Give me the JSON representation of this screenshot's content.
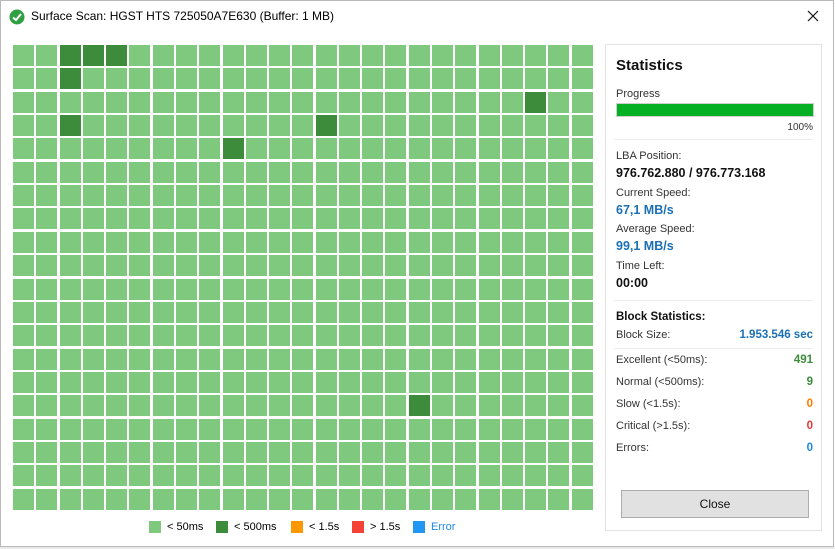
{
  "window": {
    "title": "Surface Scan: HGST HTS 725050A7E630 (Buffer: 1 MB)"
  },
  "grid": {
    "cols": 25,
    "rows": 20,
    "normal_color": "#7fc97f",
    "slow_color": "#3c8c3c",
    "slow_blocks": [
      [
        2,
        0
      ],
      [
        3,
        0
      ],
      [
        4,
        0
      ],
      [
        2,
        1
      ],
      [
        22,
        2
      ],
      [
        2,
        3
      ],
      [
        13,
        3
      ],
      [
        9,
        4
      ],
      [
        17,
        15
      ]
    ]
  },
  "legend": [
    {
      "label": "< 50ms",
      "color": "#7fc97f",
      "icon": "square-icon"
    },
    {
      "label": "< 500ms",
      "color": "#3c8c3c",
      "icon": "square-icon"
    },
    {
      "label": "< 1.5s",
      "color": "#ff9800",
      "icon": "square-icon"
    },
    {
      "label": "> 1.5s",
      "color": "#f44336",
      "icon": "square-icon"
    },
    {
      "label": "Error",
      "color": "#2196f3",
      "icon": "square-icon"
    }
  ],
  "stats": {
    "title": "Statistics",
    "progress_label": "Progress",
    "progress_value": 1.0,
    "progress_text": "100%",
    "lba_label": "LBA Position:",
    "lba_value": "976.762.880 / 976.773.168",
    "current_speed_label": "Current Speed:",
    "current_speed_value": "67,1 MB/s",
    "average_speed_label": "Average Speed:",
    "average_speed_value": "99,1 MB/s",
    "time_left_label": "Time Left:",
    "time_left_value": "00:00"
  },
  "block_stats": {
    "title": "Block Statistics:",
    "block_size_label": "Block Size:",
    "block_size_value": "1.953.546 sec",
    "rows": [
      {
        "label": "Excellent (<50ms):",
        "value": "491",
        "color": "#3c8c3c"
      },
      {
        "label": "Normal (<500ms):",
        "value": "9",
        "color": "#3c8c3c"
      },
      {
        "label": "Slow (<1.5s):",
        "value": "0",
        "color": "#ff7a00"
      },
      {
        "label": "Critical (>1.5s):",
        "value": "0",
        "color": "#e53935"
      },
      {
        "label": "Errors:",
        "value": "0",
        "color": "#1e88e5"
      }
    ]
  },
  "buttons": {
    "close_label": "Close"
  },
  "colors": {
    "progress_fill": "#06b025",
    "accent_blue": "#1a6fb5"
  }
}
